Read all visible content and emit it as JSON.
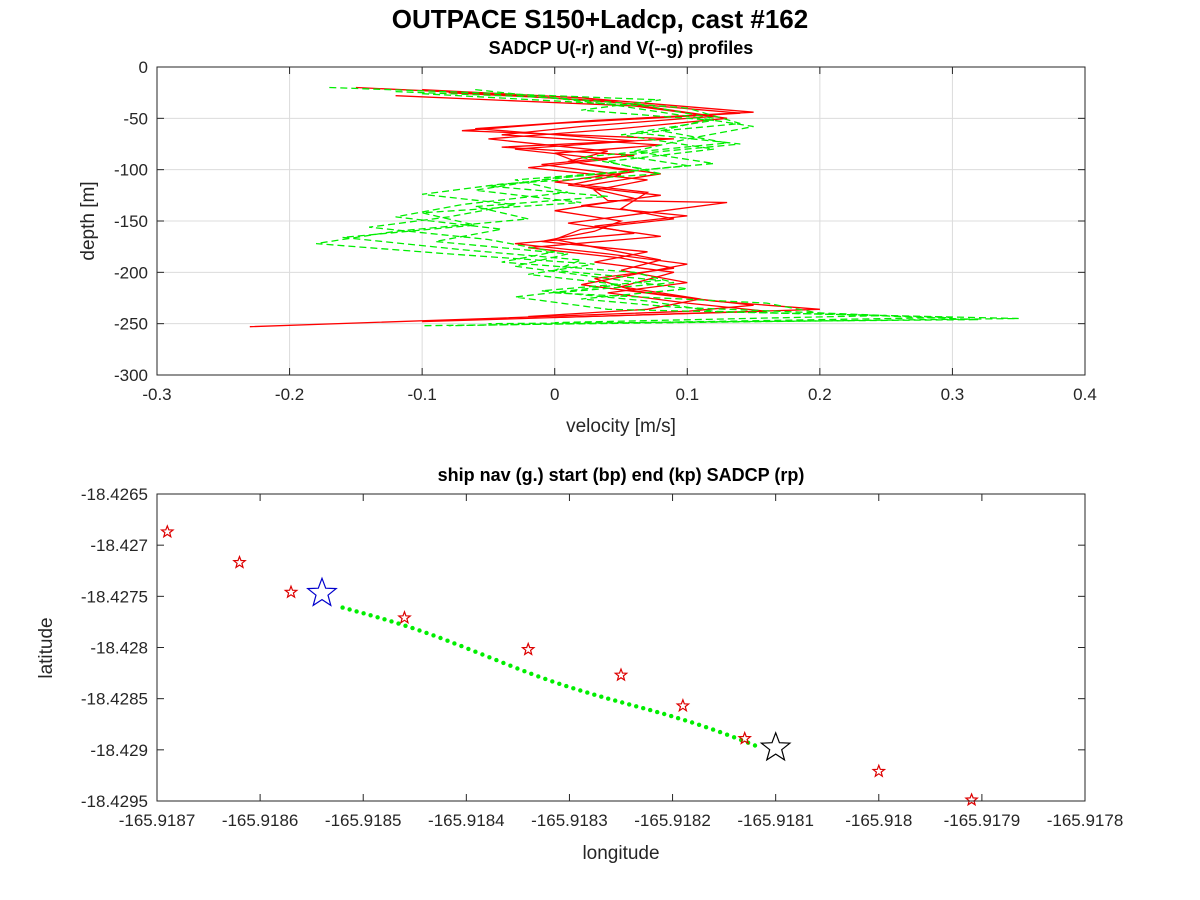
{
  "figure": {
    "title": "OUTPACE S150+Ladcp, cast #162"
  },
  "chart_data": [
    {
      "type": "line",
      "title": "SADCP U(-r) and V(--g) profiles",
      "xlabel": "velocity [m/s]",
      "ylabel": "depth [m]",
      "xlim": [
        -0.3,
        0.4
      ],
      "ylim": [
        -300,
        0
      ],
      "xticks": [
        "-0.3",
        "-0.2",
        "-0.1",
        "0",
        "0.1",
        "0.2",
        "0.3",
        "0.4"
      ],
      "yticks": [
        "0",
        "-50",
        "-100",
        "-150",
        "-200",
        "-250",
        "-300"
      ],
      "grid": true,
      "colors": {
        "U": "#ff0000",
        "V": "#00ee00"
      },
      "series": [
        {
          "style": "solid",
          "color": "#ff0000",
          "profiles": [
            [
              [
                -0.15,
                -20
              ],
              [
                -0.05,
                -26
              ],
              [
                0.05,
                -35
              ],
              [
                0.14,
                -45
              ],
              [
                0.0,
                -55
              ],
              [
                -0.07,
                -62
              ],
              [
                0.09,
                -70
              ],
              [
                -0.04,
                -78
              ],
              [
                0.06,
                -86
              ],
              [
                -0.01,
                -95
              ],
              [
                0.05,
                -105
              ],
              [
                0.01,
                -115
              ],
              [
                0.08,
                -125
              ],
              [
                0.02,
                -135
              ],
              [
                0.1,
                -145
              ],
              [
                0.03,
                -155
              ],
              [
                0.06,
                -162
              ],
              [
                -0.03,
                -172
              ],
              [
                0.04,
                -182
              ],
              [
                0.1,
                -192
              ],
              [
                0.06,
                -202
              ],
              [
                0.02,
                -212
              ],
              [
                0.08,
                -222
              ],
              [
                0.15,
                -232
              ],
              [
                0.1,
                -238
              ],
              [
                -0.05,
                -245
              ],
              [
                -0.23,
                -253
              ]
            ],
            [
              [
                -0.1,
                -22
              ],
              [
                0.02,
                -30
              ],
              [
                0.15,
                -44
              ],
              [
                0.03,
                -52
              ],
              [
                -0.06,
                -60
              ],
              [
                0.06,
                -72
              ],
              [
                -0.03,
                -80
              ],
              [
                0.04,
                -90
              ],
              [
                -0.02,
                -98
              ],
              [
                0.07,
                -110
              ],
              [
                0.03,
                -120
              ],
              [
                0.04,
                -130
              ],
              [
                0.13,
                -132
              ],
              [
                0.07,
                -142
              ],
              [
                0.01,
                -152
              ],
              [
                0.08,
                -165
              ],
              [
                -0.02,
                -176
              ],
              [
                0.05,
                -186
              ],
              [
                0.09,
                -196
              ],
              [
                0.03,
                -206
              ],
              [
                0.06,
                -218
              ],
              [
                0.12,
                -228
              ],
              [
                0.2,
                -236
              ],
              [
                0.05,
                -242
              ],
              [
                -0.1,
                -248
              ]
            ],
            [
              [
                -0.08,
                -25
              ],
              [
                0.04,
                -33
              ],
              [
                0.12,
                -48
              ],
              [
                0.02,
                -58
              ],
              [
                -0.04,
                -66
              ],
              [
                0.08,
                -76
              ],
              [
                0.0,
                -84
              ],
              [
                0.02,
                -94
              ],
              [
                0.06,
                -102
              ],
              [
                0.0,
                -112
              ],
              [
                0.07,
                -122
              ],
              [
                0.05,
                -138
              ],
              [
                0.09,
                -148
              ],
              [
                0.02,
                -158
              ],
              [
                0.0,
                -168
              ],
              [
                0.04,
                -178
              ],
              [
                0.08,
                -188
              ],
              [
                0.05,
                -198
              ],
              [
                0.1,
                -210
              ],
              [
                0.04,
                -220
              ],
              [
                0.1,
                -230
              ],
              [
                0.16,
                -238
              ],
              [
                0.0,
                -244
              ]
            ],
            [
              [
                -0.12,
                -28
              ],
              [
                0.06,
                -38
              ],
              [
                0.13,
                -50
              ],
              [
                0.05,
                -60
              ],
              [
                -0.05,
                -70
              ],
              [
                0.04,
                -82
              ],
              [
                0.01,
                -92
              ],
              [
                0.08,
                -104
              ],
              [
                0.02,
                -116
              ],
              [
                0.06,
                -128
              ],
              [
                0.0,
                -140
              ],
              [
                0.05,
                -150
              ],
              [
                0.03,
                -160
              ],
              [
                -0.01,
                -170
              ],
              [
                0.07,
                -180
              ],
              [
                0.03,
                -190
              ],
              [
                0.09,
                -200
              ],
              [
                0.05,
                -214
              ],
              [
                0.11,
                -226
              ],
              [
                0.07,
                -236
              ],
              [
                -0.02,
                -243
              ]
            ]
          ]
        },
        {
          "style": "dashed",
          "color": "#00ee00",
          "profiles": [
            [
              [
                -0.17,
                -20
              ],
              [
                -0.06,
                -25
              ],
              [
                0.08,
                -32
              ],
              [
                0.02,
                -42
              ],
              [
                0.12,
                -52
              ],
              [
                0.06,
                -64
              ],
              [
                0.14,
                -75
              ],
              [
                0.05,
                -86
              ],
              [
                0.1,
                -96
              ],
              [
                0.02,
                -106
              ],
              [
                -0.05,
                -116
              ],
              [
                0.04,
                -126
              ],
              [
                -0.06,
                -136
              ],
              [
                -0.02,
                -148
              ],
              [
                -0.12,
                -160
              ],
              [
                -0.18,
                -172
              ],
              [
                -0.08,
                -182
              ],
              [
                0.03,
                -192
              ],
              [
                -0.02,
                -202
              ],
              [
                0.05,
                -212
              ],
              [
                -0.03,
                -224
              ],
              [
                0.04,
                -236
              ],
              [
                0.35,
                -245
              ],
              [
                -0.1,
                -252
              ]
            ],
            [
              [
                -0.12,
                -24
              ],
              [
                0.0,
                -30
              ],
              [
                0.1,
                -40
              ],
              [
                0.14,
                -55
              ],
              [
                0.05,
                -66
              ],
              [
                0.12,
                -80
              ],
              [
                0.04,
                -92
              ],
              [
                0.08,
                -104
              ],
              [
                -0.04,
                -114
              ],
              [
                -0.1,
                -124
              ],
              [
                -0.03,
                -134
              ],
              [
                -0.08,
                -146
              ],
              [
                -0.14,
                -156
              ],
              [
                -0.05,
                -168
              ],
              [
                0.0,
                -180
              ],
              [
                -0.04,
                -190
              ],
              [
                0.06,
                -200
              ],
              [
                0.09,
                -210
              ],
              [
                0.0,
                -220
              ],
              [
                0.16,
                -230
              ],
              [
                0.2,
                -240
              ],
              [
                0.32,
                -246
              ],
              [
                -0.05,
                -250
              ]
            ],
            [
              [
                -0.06,
                -22
              ],
              [
                0.04,
                -36
              ],
              [
                0.09,
                -46
              ],
              [
                0.15,
                -58
              ],
              [
                0.1,
                -70
              ],
              [
                0.06,
                -82
              ],
              [
                0.12,
                -94
              ],
              [
                0.0,
                -108
              ],
              [
                -0.06,
                -120
              ],
              [
                0.02,
                -132
              ],
              [
                -0.1,
                -142
              ],
              [
                -0.06,
                -154
              ],
              [
                -0.16,
                -166
              ],
              [
                -0.07,
                -178
              ],
              [
                0.02,
                -188
              ],
              [
                0.0,
                -198
              ],
              [
                0.08,
                -208
              ],
              [
                -0.01,
                -218
              ],
              [
                0.07,
                -228
              ],
              [
                0.12,
                -238
              ],
              [
                0.3,
                -244
              ],
              [
                -0.08,
                -252
              ]
            ],
            [
              [
                -0.1,
                -26
              ],
              [
                0.07,
                -38
              ],
              [
                0.12,
                -50
              ],
              [
                0.08,
                -62
              ],
              [
                0.13,
                -74
              ],
              [
                0.02,
                -88
              ],
              [
                0.07,
                -100
              ],
              [
                -0.03,
                -110
              ],
              [
                0.01,
                -122
              ],
              [
                -0.07,
                -134
              ],
              [
                -0.12,
                -146
              ],
              [
                -0.04,
                -158
              ],
              [
                -0.09,
                -170
              ],
              [
                0.01,
                -182
              ],
              [
                -0.03,
                -194
              ],
              [
                0.04,
                -206
              ],
              [
                0.1,
                -216
              ],
              [
                0.02,
                -226
              ],
              [
                0.09,
                -234
              ],
              [
                0.25,
                -242
              ],
              [
                0.0,
                -249
              ]
            ]
          ]
        }
      ]
    },
    {
      "type": "scatter",
      "title": "ship nav (g.) start (bp) end (kp) SADCP (rp)",
      "xlabel": "longitude",
      "ylabel": "latitude",
      "xlim": [
        -165.9187,
        -165.9178
      ],
      "ylim": [
        -18.4295,
        -18.4265
      ],
      "xticks": [
        "-165.9187",
        "-165.9186",
        "-165.9185",
        "-165.9184",
        "-165.9183",
        "-165.9182",
        "-165.9181",
        "-165.918",
        "-165.9179",
        "-165.9178"
      ],
      "yticks": [
        "-18.4265",
        "-18.427",
        "-18.4275",
        "-18.428",
        "-18.4285",
        "-18.429",
        "-18.4295"
      ],
      "grid": false,
      "colors": {
        "nav": "#00ee00",
        "start": "#0000cc",
        "end": "#000000",
        "sadcp": "#dd0000"
      },
      "ship_nav": {
        "start": [
          -165.91852,
          -18.42761
        ],
        "end": [
          -165.91812,
          -18.42897
        ],
        "count": 60
      },
      "start_point": [
        -165.91854,
        -18.42747
      ],
      "end_point": [
        -165.9181,
        -18.42898
      ],
      "sadcp_points": [
        [
          -165.91869,
          -18.42687
        ],
        [
          -165.91862,
          -18.42717
        ],
        [
          -165.91857,
          -18.42746
        ],
        [
          -165.91846,
          -18.42771
        ],
        [
          -165.91834,
          -18.42802
        ],
        [
          -165.91825,
          -18.42827
        ],
        [
          -165.91819,
          -18.42857
        ],
        [
          -165.91813,
          -18.42889
        ],
        [
          -165.918,
          -18.42921
        ],
        [
          -165.91791,
          -18.42949
        ]
      ]
    }
  ]
}
